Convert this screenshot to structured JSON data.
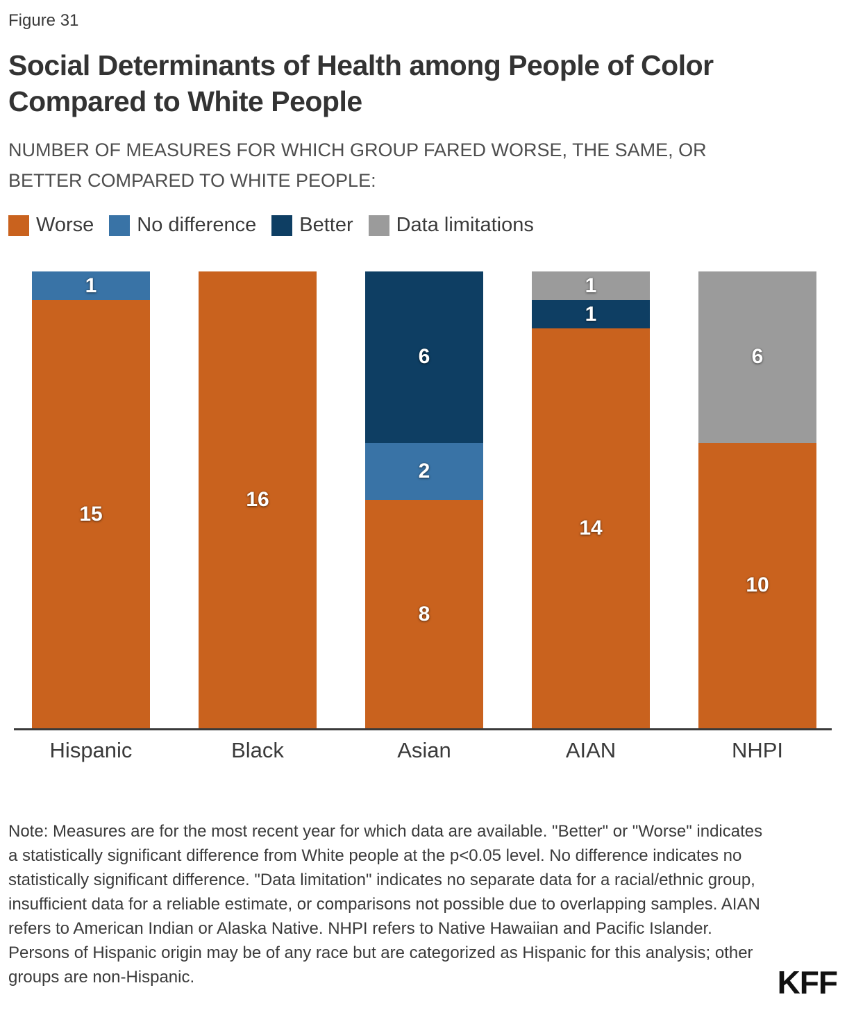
{
  "figure_label": "Figure 31",
  "title": {
    "line1": "Social Determinants of Health among People of Color",
    "line2": "Compared to White People"
  },
  "subtitle": {
    "line1": "NUMBER OF MEASURES FOR WHICH GROUP FARED WORSE, THE SAME, OR",
    "line2": "BETTER COMPARED TO WHITE PEOPLE:"
  },
  "colors": {
    "worse": "#c9621e",
    "no_difference": "#3973a6",
    "better": "#0e3e63",
    "data_limitations": "#9b9b9b",
    "text_dark": "#3a3a3a",
    "axis": "#3a3a3a"
  },
  "legend": [
    {
      "label": "Worse",
      "color_key": "worse"
    },
    {
      "label": "No difference",
      "color_key": "no_difference"
    },
    {
      "label": "Better",
      "color_key": "better"
    },
    {
      "label": "Data limitations",
      "color_key": "data_limitations"
    }
  ],
  "chart_data": {
    "type": "bar",
    "stacked": true,
    "categories": [
      "Hispanic",
      "Black",
      "Asian",
      "AIAN",
      "NHPI"
    ],
    "series": [
      {
        "name": "Worse",
        "color_key": "worse",
        "values": [
          15,
          16,
          8,
          14,
          10
        ]
      },
      {
        "name": "No difference",
        "color_key": "no_difference",
        "values": [
          1,
          0,
          2,
          0,
          0
        ]
      },
      {
        "name": "Better",
        "color_key": "better",
        "values": [
          0,
          0,
          6,
          1,
          0
        ]
      },
      {
        "name": "Data limitations",
        "color_key": "data_limitations",
        "values": [
          0,
          0,
          0,
          1,
          6
        ]
      }
    ],
    "total_per_category": 16,
    "ylim": [
      0,
      16
    ],
    "grid": false,
    "legend_position": "top",
    "value_labels": "inside-white"
  },
  "note": "Note: Measures are for the most recent year for which data are available. \"Better\" or \"Worse\" indicates a statistically significant difference from White people at the p<0.05 level. No difference indicates no statistically significant difference. \"Data limitation\" indicates no separate data for a racial/ethnic group, insufficient data for a reliable estimate, or comparisons not possible due to overlapping samples. AIAN refers to American Indian or Alaska Native. NHPI refers to Native Hawaiian and Pacific Islander. Persons of Hispanic origin may be of any race but are categorized as Hispanic for this analysis; other groups are non-Hispanic.",
  "logo": "KFF"
}
